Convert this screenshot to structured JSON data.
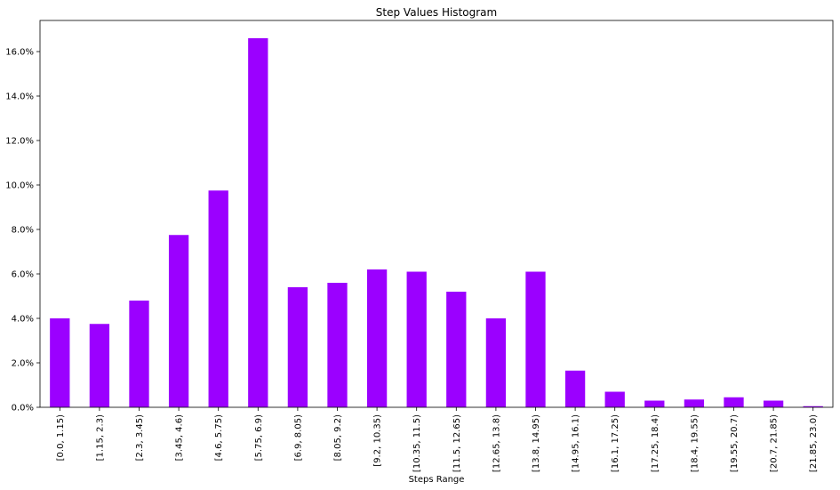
{
  "chart_data": {
    "type": "bar",
    "title": "Step Values Histogram",
    "xlabel": "Steps Range",
    "ylabel": "",
    "ylim": [
      0,
      17.4
    ],
    "yticks": [
      "0.0%",
      "2.0%",
      "4.0%",
      "6.0%",
      "8.0%",
      "10.0%",
      "12.0%",
      "14.0%",
      "16.0%"
    ],
    "ytick_values": [
      0,
      2,
      4,
      6,
      8,
      10,
      12,
      14,
      16
    ],
    "grid": false,
    "bar_color": "#9b00ff",
    "categories": [
      "[0.0, 1.15)",
      "[1.15, 2.3)",
      "[2.3, 3.45)",
      "[3.45, 4.6)",
      "[4.6, 5.75)",
      "[5.75, 6.9)",
      "[6.9, 8.05)",
      "[8.05, 9.2)",
      "[9.2, 10.35)",
      "[10.35, 11.5)",
      "[11.5, 12.65)",
      "[12.65, 13.8)",
      "[13.8, 14.95)",
      "[14.95, 16.1)",
      "[16.1, 17.25)",
      "[17.25, 18.4)",
      "[18.4, 19.55)",
      "[19.55, 20.7)",
      "[20.7, 21.85)",
      "[21.85, 23.0)"
    ],
    "values": [
      4.0,
      3.75,
      4.8,
      7.75,
      9.75,
      16.6,
      5.4,
      5.6,
      6.2,
      6.1,
      5.2,
      4.0,
      6.1,
      1.65,
      0.7,
      0.3,
      0.35,
      0.45,
      0.3,
      0.05
    ]
  }
}
